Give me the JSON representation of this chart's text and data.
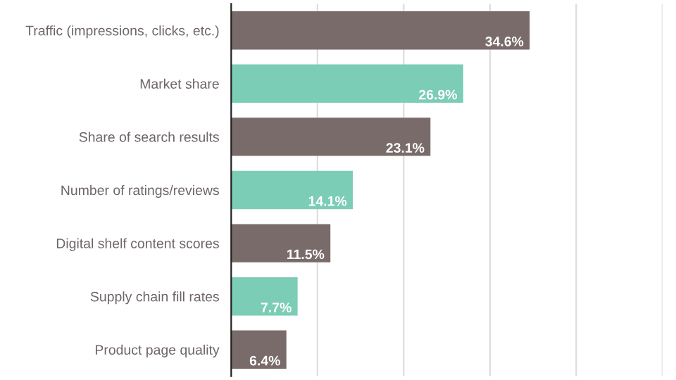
{
  "chart_data": {
    "type": "bar",
    "orientation": "horizontal",
    "categories": [
      "Traffic (impressions, clicks, etc.)",
      "Market share",
      "Share of search results",
      "Number of ratings/reviews",
      "Digital shelf content scores",
      "Supply chain fill rates",
      "Product page quality"
    ],
    "values": [
      34.6,
      26.9,
      23.1,
      14.1,
      11.5,
      7.7,
      6.4
    ],
    "colors": [
      "#7a6b6b",
      "#7ccdb5",
      "#7a6b6b",
      "#7ccdb5",
      "#7a6b6b",
      "#7ccdb5",
      "#7a6b6b"
    ],
    "value_labels": [
      "34.6%",
      "26.9%",
      "23.1%",
      "14.1%",
      "11.5%",
      "7.7%",
      "6.4%"
    ],
    "xlim": [
      0,
      50
    ],
    "xticks": [
      {
        "value": 10,
        "label": null
      },
      {
        "value": 20,
        "label": null
      },
      {
        "value": 30,
        "label": null
      },
      {
        "value": 40,
        "label": null
      },
      {
        "value": 50,
        "label": null
      }
    ],
    "grid": "x",
    "tick_labels": "y"
  }
}
